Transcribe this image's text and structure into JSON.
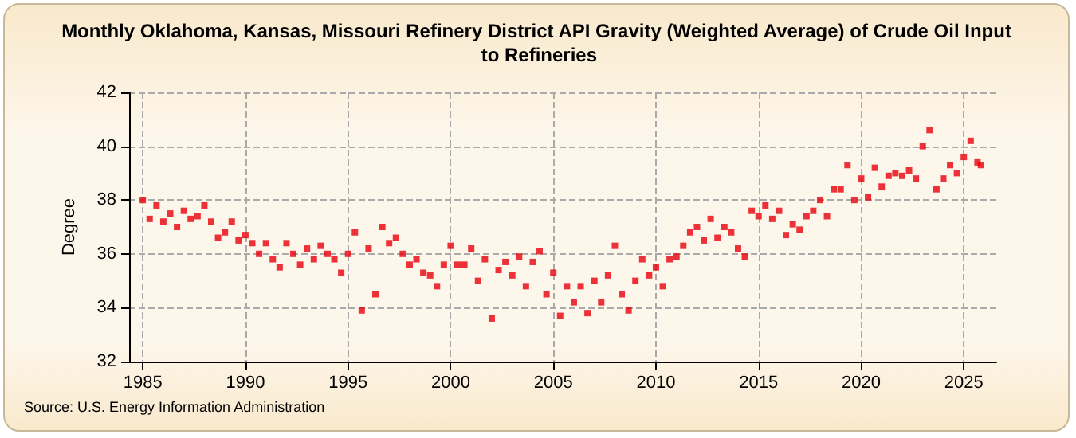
{
  "chart_data": {
    "type": "scatter",
    "title": "Monthly Oklahoma, Kansas, Missouri Refinery District API Gravity (Weighted Average) of Crude Oil Input to Refineries",
    "ylabel": "Degree",
    "annotations": [
      "Source: U.S. Energy Information Administration"
    ],
    "x": [
      "1985-01",
      "1985-05",
      "1985-09",
      "1986-01",
      "1986-05",
      "1986-09",
      "1987-01",
      "1987-05",
      "1987-09",
      "1988-01",
      "1988-05",
      "1988-09",
      "1989-01",
      "1989-05",
      "1989-09",
      "1990-01",
      "1990-05",
      "1990-09",
      "1991-01",
      "1991-05",
      "1991-09",
      "1992-01",
      "1992-05",
      "1992-09",
      "1993-01",
      "1993-05",
      "1993-09",
      "1994-01",
      "1994-05",
      "1994-09",
      "1995-01",
      "1995-05",
      "1995-09",
      "1996-01",
      "1996-05",
      "1996-09",
      "1997-01",
      "1997-05",
      "1997-09",
      "1998-01",
      "1998-05",
      "1998-09",
      "1999-01",
      "1999-05",
      "1999-09",
      "2000-01",
      "2000-05",
      "2000-09",
      "2001-01",
      "2001-05",
      "2001-09",
      "2002-01",
      "2002-05",
      "2002-09",
      "2003-01",
      "2003-05",
      "2003-09",
      "2004-01",
      "2004-05",
      "2004-09",
      "2005-01",
      "2005-05",
      "2005-09",
      "2006-01",
      "2006-05",
      "2006-09",
      "2007-01",
      "2007-05",
      "2007-09",
      "2008-01",
      "2008-05",
      "2008-09",
      "2009-01",
      "2009-05",
      "2009-09",
      "2010-01",
      "2010-05",
      "2010-09",
      "2011-01",
      "2011-05",
      "2011-09",
      "2012-01",
      "2012-05",
      "2012-09",
      "2013-01",
      "2013-05",
      "2013-09",
      "2014-01",
      "2014-05",
      "2014-09",
      "2015-01",
      "2015-05",
      "2015-09",
      "2016-01",
      "2016-05",
      "2016-09",
      "2017-01",
      "2017-05",
      "2017-09",
      "2018-01",
      "2018-05",
      "2018-09",
      "2019-01",
      "2019-05",
      "2019-09",
      "2020-01",
      "2020-05",
      "2020-09",
      "2021-01",
      "2021-05",
      "2021-09",
      "2022-01",
      "2022-05",
      "2022-09",
      "2023-01",
      "2023-05",
      "2023-09",
      "2024-01",
      "2024-05",
      "2024-09",
      "2025-01",
      "2025-05",
      "2025-09",
      "2025-11"
    ],
    "series": [
      {
        "color": "#e8000b",
        "values": [
          38.0,
          37.3,
          37.8,
          37.2,
          37.5,
          37.0,
          37.6,
          37.3,
          37.4,
          37.8,
          37.2,
          36.6,
          36.8,
          37.2,
          36.5,
          36.7,
          36.4,
          36.0,
          36.4,
          35.8,
          35.5,
          36.4,
          36.0,
          35.6,
          36.2,
          35.8,
          36.3,
          36.0,
          35.8,
          35.3,
          36.0,
          36.8,
          33.9,
          36.2,
          34.5,
          37.0,
          36.4,
          36.6,
          36.0,
          35.6,
          35.8,
          35.3,
          35.2,
          34.8,
          35.6,
          36.3,
          35.6,
          35.6,
          36.2,
          35.0,
          35.8,
          33.6,
          35.4,
          35.7,
          35.2,
          35.9,
          34.8,
          35.7,
          36.1,
          34.5,
          35.3,
          33.7,
          34.8,
          34.2,
          34.8,
          33.8,
          35.0,
          34.2,
          35.2,
          36.3,
          34.5,
          33.9,
          35.0,
          35.8,
          35.2,
          35.5,
          34.8,
          35.8,
          35.9,
          36.3,
          36.8,
          37.0,
          36.5,
          37.3,
          36.6,
          37.0,
          36.8,
          36.2,
          35.9,
          37.6,
          37.4,
          37.8,
          37.3,
          37.6,
          36.7,
          37.1,
          36.9,
          37.4,
          37.6,
          38.0,
          37.4,
          38.4,
          38.4,
          39.3,
          38.0,
          38.8,
          38.1,
          39.2,
          38.5,
          38.9,
          39.0,
          38.9,
          39.1,
          38.8,
          40.0,
          40.6,
          38.4,
          38.8,
          39.3,
          39.0,
          39.6,
          40.2,
          39.4,
          39.3
        ]
      }
    ],
    "xlim": [
      "1984-05",
      "2026-08"
    ],
    "xticks": [
      "1985",
      "1990",
      "1995",
      "2000",
      "2005",
      "2010",
      "2015",
      "2020",
      "2025"
    ],
    "ylim": [
      32,
      42
    ],
    "yticks": [
      32,
      34,
      36,
      38,
      40,
      42
    ],
    "grid": true,
    "marker": "square"
  }
}
